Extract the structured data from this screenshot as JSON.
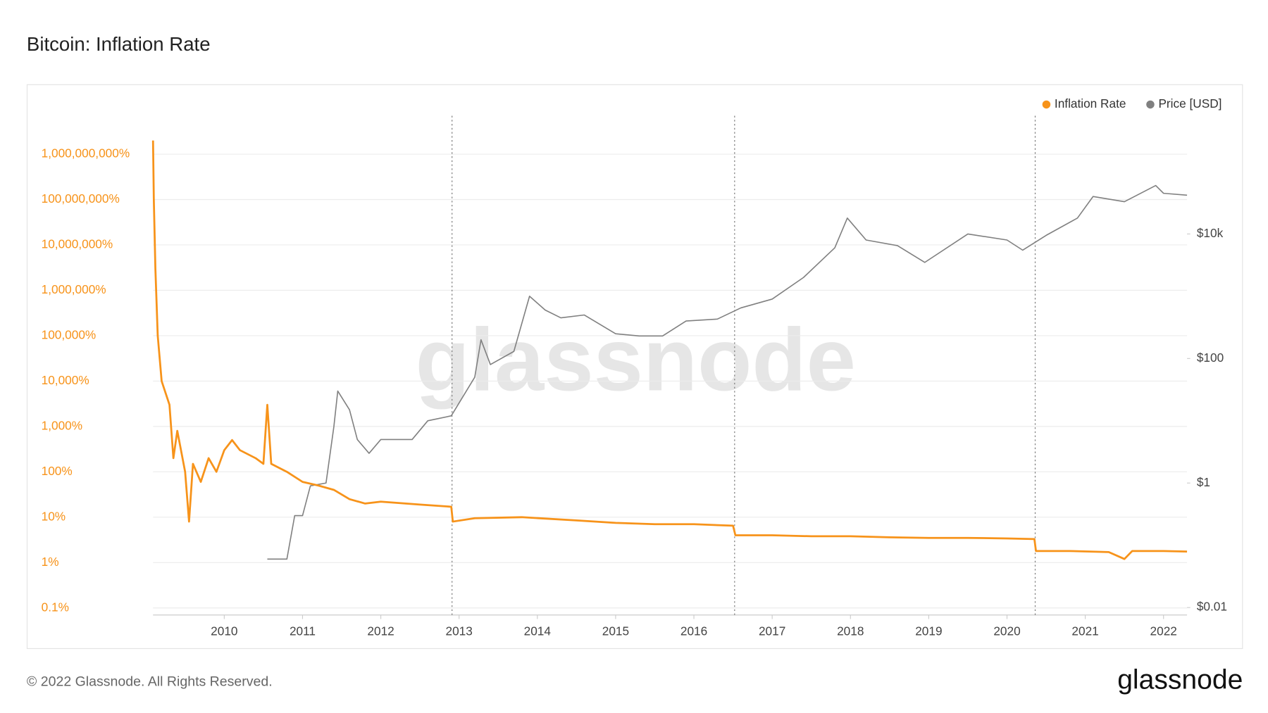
{
  "chart_data": {
    "type": "line",
    "title": "Bitcoin: Inflation Rate",
    "watermark": "glassnode",
    "footer": "© 2022 Glassnode. All Rights Reserved.",
    "logo": "glassnode",
    "log_scale": true,
    "grid": true,
    "legend": "top-right",
    "xlim": [
      2009.09,
      2022.3
    ],
    "xticks": [
      2010,
      2011,
      2012,
      2013,
      2014,
      2015,
      2016,
      2017,
      2018,
      2019,
      2020,
      2021,
      2022
    ],
    "ylim": [
      0.07,
      7000000000
    ],
    "yticks": [
      {
        "value": 0.1,
        "label": "0.1%"
      },
      {
        "value": 1,
        "label": "1%"
      },
      {
        "value": 10,
        "label": "10%"
      },
      {
        "value": 100,
        "label": "100%"
      },
      {
        "value": 1000,
        "label": "1,000%"
      },
      {
        "value": 10000,
        "label": "10,000%"
      },
      {
        "value": 100000,
        "label": "100,000%"
      },
      {
        "value": 1000000,
        "label": "1,000,000%"
      },
      {
        "value": 10000000,
        "label": "10,000,000%"
      },
      {
        "value": 100000000,
        "label": "100,000,000%"
      },
      {
        "value": 1000000000,
        "label": "1,000,000,000%"
      }
    ],
    "y2lim": [
      0.0076,
      790000
    ],
    "y2ticks": [
      {
        "value": 0.01,
        "label": "$0.01"
      },
      {
        "value": 1,
        "label": "$1"
      },
      {
        "value": 100,
        "label": "$100"
      },
      {
        "value": 10000,
        "label": "$10k"
      }
    ],
    "vlines": [
      2012.91,
      2016.52,
      2020.36
    ],
    "series": [
      {
        "name": "Inflation Rate",
        "color": "#f7931a",
        "axis": "y",
        "x": [
          2009.09,
          2009.1,
          2009.12,
          2009.15,
          2009.2,
          2009.3,
          2009.35,
          2009.4,
          2009.5,
          2009.55,
          2009.6,
          2009.7,
          2009.8,
          2009.9,
          2010.0,
          2010.1,
          2010.2,
          2010.4,
          2010.5,
          2010.55,
          2010.6,
          2010.8,
          2011.0,
          2011.2,
          2011.4,
          2011.6,
          2011.8,
          2012.0,
          2012.5,
          2012.9,
          2012.92,
          2013.2,
          2013.8,
          2014.5,
          2015.0,
          2015.5,
          2016.0,
          2016.5,
          2016.53,
          2017.0,
          2017.5,
          2018.0,
          2018.5,
          2019.0,
          2019.5,
          2020.0,
          2020.35,
          2020.37,
          2020.8,
          2021.3,
          2021.5,
          2021.6,
          2022.0,
          2022.3
        ],
        "values": [
          2000000000,
          100000000,
          3000000,
          100000,
          10000,
          3000,
          200,
          800,
          100,
          8,
          150,
          60,
          200,
          100,
          300,
          500,
          300,
          200,
          150,
          3000,
          150,
          100,
          60,
          50,
          40,
          25,
          20,
          22,
          19,
          17,
          8,
          9.5,
          10,
          8.5,
          7.5,
          7,
          7,
          6.5,
          4,
          4,
          3.8,
          3.8,
          3.6,
          3.5,
          3.5,
          3.4,
          3.3,
          1.8,
          1.8,
          1.7,
          1.2,
          1.8,
          1.8,
          1.75
        ]
      },
      {
        "name": "Price [USD]",
        "color": "#808080",
        "axis": "y2",
        "x": [
          2010.55,
          2010.8,
          2010.9,
          2011.0,
          2011.1,
          2011.3,
          2011.4,
          2011.45,
          2011.6,
          2011.7,
          2011.85,
          2012.0,
          2012.4,
          2012.6,
          2012.9,
          2013.2,
          2013.28,
          2013.4,
          2013.7,
          2013.9,
          2014.1,
          2014.3,
          2014.6,
          2015.0,
          2015.3,
          2015.6,
          2015.9,
          2016.3,
          2016.6,
          2017.0,
          2017.4,
          2017.8,
          2017.96,
          2018.2,
          2018.6,
          2018.95,
          2019.5,
          2020.0,
          2020.2,
          2020.5,
          2020.9,
          2021.1,
          2021.5,
          2021.9,
          2022.0,
          2022.3
        ],
        "values": [
          0.06,
          0.06,
          0.3,
          0.3,
          0.9,
          1,
          8,
          30,
          15,
          5,
          3,
          5,
          5,
          10,
          12,
          50,
          200,
          80,
          130,
          1000,
          600,
          450,
          500,
          250,
          230,
          230,
          400,
          430,
          650,
          900,
          2000,
          6000,
          18000,
          8000,
          6500,
          3500,
          10000,
          8000,
          5500,
          9500,
          18000,
          40000,
          33000,
          60000,
          45000,
          42000
        ]
      }
    ]
  }
}
